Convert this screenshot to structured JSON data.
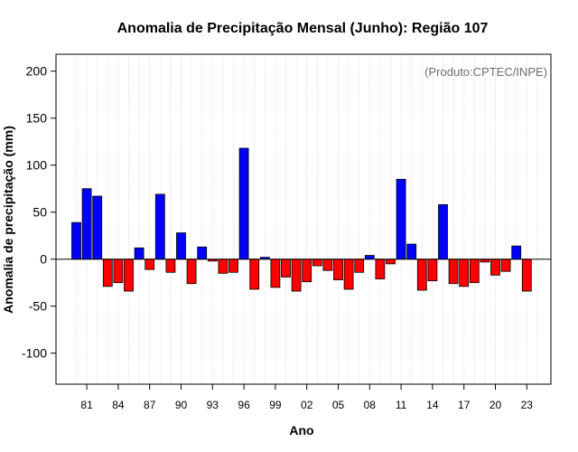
{
  "chart_data": {
    "type": "bar",
    "title": "Anomalia de Precipitação Mensal (Junho): Região 107",
    "xlabel": "Ano",
    "ylabel": "Anomalia de precipitação (mm)",
    "credit": "(Produto:CPTEC/INPE)",
    "ylim": [
      -133,
      218
    ],
    "yticks": [
      -100,
      -50,
      0,
      50,
      100,
      150,
      200
    ],
    "xtick_labels": [
      "81",
      "84",
      "87",
      "90",
      "93",
      "96",
      "99",
      "02",
      "05",
      "08",
      "11",
      "14",
      "17",
      "20",
      "23"
    ],
    "grid": "vertical dotted lines at each year",
    "colors": {
      "positive": "#0000ff",
      "negative": "#ff0000",
      "zero_line": "#000000"
    },
    "categories": [
      "1980",
      "1981",
      "1982",
      "1983",
      "1984",
      "1985",
      "1986",
      "1987",
      "1988",
      "1989",
      "1990",
      "1991",
      "1992",
      "1993",
      "1994",
      "1995",
      "1996",
      "1997",
      "1998",
      "1999",
      "2000",
      "2001",
      "2002",
      "2003",
      "2004",
      "2005",
      "2006",
      "2007",
      "2008",
      "2009",
      "2010",
      "2011",
      "2012",
      "2013",
      "2014",
      "2015",
      "2016",
      "2017",
      "2018",
      "2019",
      "2020",
      "2021",
      "2022",
      "2023",
      "2024"
    ],
    "values": [
      39,
      75,
      67,
      -29,
      -25,
      -34,
      12,
      -11,
      69,
      -14,
      28,
      -26,
      13,
      -2,
      -15,
      -14,
      118,
      -32,
      2,
      -30,
      -19,
      -34,
      -24,
      -7,
      -12,
      -22,
      -32,
      -14,
      4,
      -21,
      -5,
      85,
      16,
      -33,
      -23,
      58,
      -26,
      -29,
      -25,
      -3,
      -17,
      -13,
      14,
      -34,
      0
    ]
  }
}
